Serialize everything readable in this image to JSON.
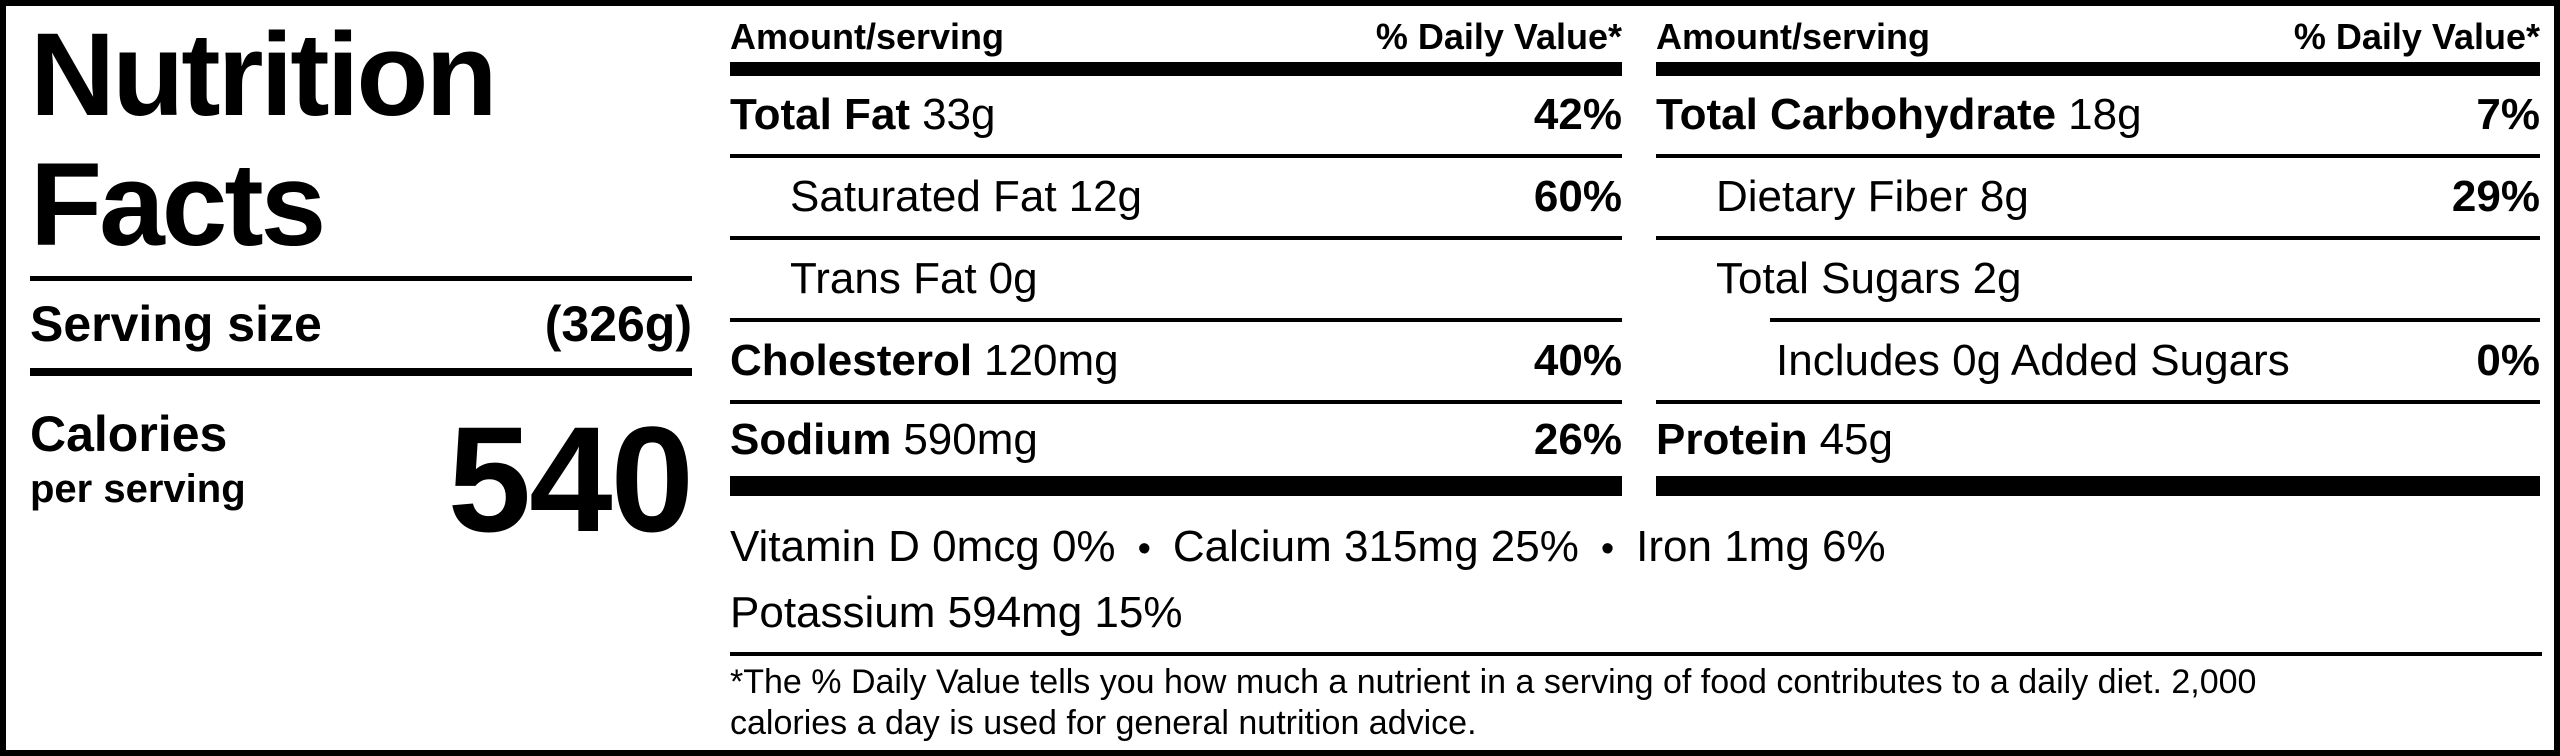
{
  "label": {
    "title_line1": "Nutrition",
    "title_line2": "Facts",
    "serving_size_label": "Serving size",
    "serving_size_value": "(326g)",
    "calories_label": "Calories",
    "calories_sublabel": "per serving",
    "calories_value": "540"
  },
  "columns": [
    {
      "header_left": "Amount/serving",
      "header_right": "% Daily Value*",
      "rows": [
        {
          "name": "Total Fat",
          "amount": "33g",
          "dv": "42%"
        },
        {
          "name": "Saturated Fat",
          "amount": "12g",
          "dv": "60%"
        },
        {
          "name": "Trans Fat",
          "amount": "0g",
          "dv": ""
        },
        {
          "name": "Cholesterol",
          "amount": "120mg",
          "dv": "40%"
        },
        {
          "name": "Sodium",
          "amount": "590mg",
          "dv": "26%"
        }
      ]
    },
    {
      "header_left": "Amount/serving",
      "header_right": "% Daily Value*",
      "rows": [
        {
          "name": "Total Carbohydrate",
          "amount": "18g",
          "dv": "7%"
        },
        {
          "name": "Dietary Fiber",
          "amount": "8g",
          "dv": "29%"
        },
        {
          "name": "Total Sugars",
          "amount": "2g",
          "dv": ""
        },
        {
          "name": "Includes 0g Added Sugars",
          "amount": "",
          "dv": "0%"
        },
        {
          "name": "Protein",
          "amount": "45g",
          "dv": ""
        }
      ]
    }
  ],
  "micronutrients": {
    "bullet": "•",
    "items": [
      "Vitamin D 0mcg 0%",
      "Calcium 315mg 25%",
      "Iron 1mg 6%",
      "Potassium 594mg 15%"
    ]
  },
  "footnote": {
    "line1": "*The % Daily Value tells you how much a nutrient in a serving of food contributes to a daily diet. 2,000",
    "line2": "calories a day is used for general nutrition advice."
  },
  "colors": {
    "ink": "#000000",
    "paper": "#ffffff"
  }
}
